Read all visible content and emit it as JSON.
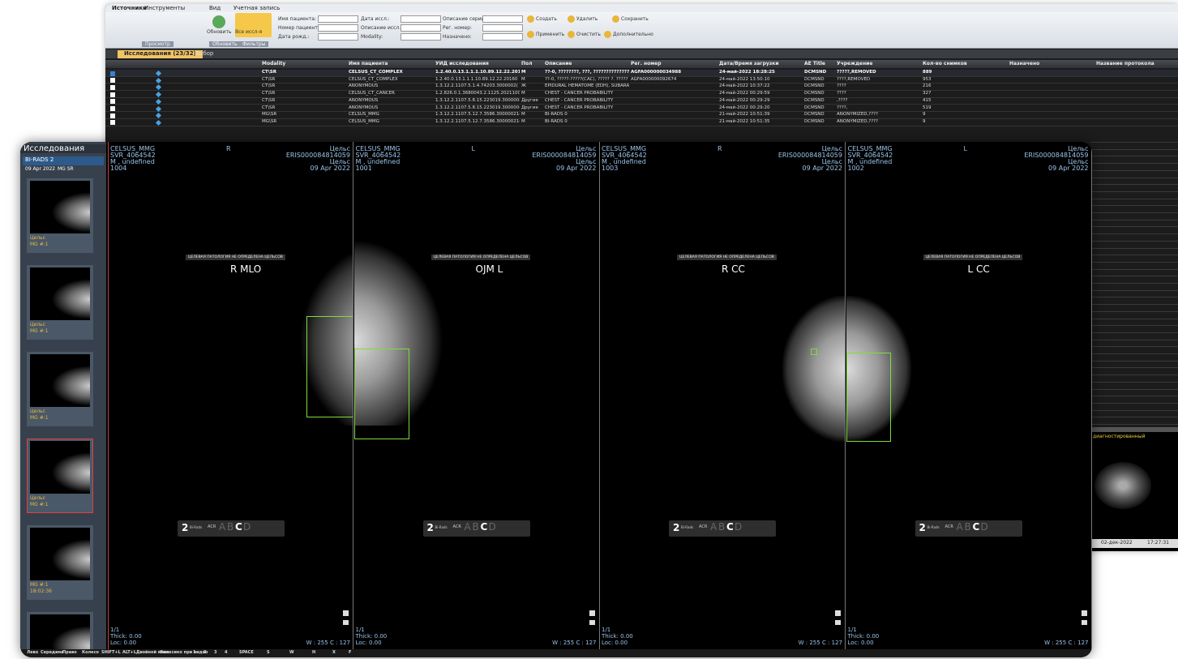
{
  "back_window": {
    "menu": [
      "Источники",
      "Инструменты",
      "Вид",
      "Учетная запись"
    ],
    "toolbar": {
      "buttons": [
        "Обновить",
        "Все иссл-я"
      ],
      "groups": [
        "Просмотр",
        "Обновить",
        "Фильтры"
      ],
      "filters": [
        "Имя пациента:",
        "Номер пациента:",
        "Дата рожд.:",
        "Дата иссл.:",
        "Описание иссл.:",
        "Modality:",
        "Описание серии:",
        "Рег. номер:",
        "Назначено:"
      ],
      "actions": [
        "Создать",
        "Удалить",
        "Сохранить",
        "Применить",
        "Очистить",
        "Дополнительно"
      ]
    },
    "tabs": [
      "Исследования (23/32)",
      "Выбор"
    ],
    "table": {
      "columns": [
        "Modality",
        "Имя пациента",
        "УИД исследования",
        "Пол",
        "Описание",
        "Рег. номер",
        "Дата/Время загрузки",
        "AE Title",
        "Учреждение",
        "Кол-во снимков",
        "Назначено",
        "Название протокола"
      ],
      "rows": [
        {
          "modality": "CT\\SR",
          "patient": "CELSUS_CT_COMPLEX",
          "uid": "1.2.40.0.13.1.1.1.10.89.12.22.201",
          "sex": "M",
          "description": "??-0, ????????, ???, ?????????????? ???:",
          "reg_number": "AGFA000000034988",
          "loaded": "24-май-2022 18:28:25",
          "ae_title": "DCMSND",
          "institution": "?????,REMOVED",
          "images": "889"
        },
        {
          "modality": "CT\\SR",
          "patient": "CELSUS_CT_COMPLEX",
          "uid": "1.2.40.0.13.1.1.1.10.89.12.22.20160",
          "sex": "M",
          "description": "??-0, ?????-?????(CAC), ????? ?. ????? (T:",
          "reg_number": "AGFA000000092674",
          "loaded": "24-май-2022 13:50:10",
          "ae_title": "DCMSND",
          "institution": "????,REMOVED",
          "images": "953"
        },
        {
          "modality": "CT\\SR",
          "patient": "ANONYMOUS",
          "uid": "1.3.12.2.1107.5.1.4.74203.3000002(",
          "sex": "Ж",
          "description": "EPIDURAL HEMATOME (EDH), SUBARA(",
          "loaded": "24-май-2022 10:37:22",
          "ae_title": "DCMSND",
          "institution": "????",
          "images": "216"
        },
        {
          "modality": "CT\\SR",
          "patient": "CELSUS_CT_CANCER",
          "uid": "1.2.826.0.1.3680043.2.1125.2021100",
          "sex": "M",
          "description": "CHEST - CANCER PROBABILITY",
          "loaded": "24-май-2022 00:29:59",
          "ae_title": "DCMSND",
          "institution": "????",
          "images": "327"
        },
        {
          "modality": "CT\\SR",
          "patient": "ANONYMOUS",
          "uid": "1.3.12.2.1107.5.8.15.223019.300000(",
          "sex": "Другие",
          "description": "CHEST - CANCER PROBABILITY",
          "loaded": "24-май-2022 00:29:29",
          "ae_title": "DCMSND",
          "institution": ",????",
          "images": "415"
        },
        {
          "modality": "CT\\SR",
          "patient": "ANONYMOUS",
          "uid": "1.3.12.2.1107.5.8.15.223019.300000(",
          "sex": "Другие",
          "description": "CHEST - CANCER PROBABILITY",
          "loaded": "24-май-2022 00:29:20",
          "ae_title": "DCMSND",
          "institution": "????,",
          "images": "519"
        },
        {
          "modality": "MG\\SR",
          "patient": "CELSUS_MMG",
          "uid": "1.3.12.2.1107.5.12.7.3586.30000021(",
          "sex": "M",
          "description": "BI-RADS 0",
          "loaded": "21-май-2022 10:51:39",
          "ae_title": "DCMSND",
          "institution": "ANONYMIZED,????",
          "images": "9"
        },
        {
          "modality": "MG\\SR",
          "patient": "CELSUS_MMG",
          "uid": "1.3.12.2.1107.5.12.7.3586.30000021(",
          "sex": "M",
          "description": "BI-RADS 0",
          "loaded": "21-май-2022 10:51:35",
          "ae_title": "DCMSND",
          "institution": "ANONYMIZED,????",
          "images": "9"
        }
      ]
    },
    "side_panel": {
      "status": "диагностированный",
      "date": "02-дек-2022",
      "time": "17:27:31"
    }
  },
  "viewer": {
    "sidebar": {
      "title": "Исследования",
      "dropdown": "BI-RADS 2",
      "study_date": "09 Apr 2022",
      "study_modality": "MG SR",
      "thumbnails": [
        {
          "lines": [
            "Цельс",
            "MG #:1"
          ]
        },
        {
          "lines": [
            "Цельс",
            "MG #:1"
          ]
        },
        {
          "lines": [
            "Цельс",
            "MG #:1"
          ]
        },
        {
          "lines": [
            "Цельс",
            "MG #:1"
          ],
          "selected": true
        },
        {
          "lines": [
            "MG #:1",
            "18:02:36"
          ]
        },
        {
          "lines": []
        }
      ]
    },
    "viewports": [
      {
        "patient": "CELSUS_MMG",
        "id": "SVR_4064542",
        "sex": "M , undefined",
        "number": "1004",
        "side": "R",
        "right": [
          "Цельс",
          "ERIS000084814059",
          "Цельс",
          "09 Apr 2022"
        ],
        "pathology": "ЦЕЛЕВАЯ ПАТОЛОГИЯ НЕ ОПРЕДЕЛЕНА ЦЕЛЬСОВ",
        "view": "R MLO",
        "birads": "2",
        "birads_label": "Bi-Rads",
        "acr": "ACR",
        "density": [
          "A",
          "B",
          "C",
          "D"
        ],
        "frame": "1/1",
        "thick": "Thick: 0.00",
        "loc": "Loc: 0.00",
        "window": "W : 255 C : 127"
      },
      {
        "patient": "CELSUS_MMG",
        "id": "SVR_4064542",
        "sex": "M , undefined",
        "number": "1001",
        "side": "L",
        "right": [
          "Цельс",
          "ERIS000084814059",
          "Цельс",
          "09 Apr 2022"
        ],
        "pathology": "ЦЕЛЕВАЯ ПАТОЛОГИЯ НЕ ОПРЕДЕЛЕНА ЦЕЛЬСОВ",
        "view": "OJM L",
        "birads": "2",
        "birads_label": "Bi-Rads",
        "acr": "ACR",
        "density": [
          "A",
          "B",
          "C",
          "D"
        ],
        "frame": "1/1",
        "thick": "Thick: 0.00",
        "loc": "Loc: 0.00",
        "window": "W : 255 C : 127"
      },
      {
        "patient": "CELSUS_MMG",
        "id": "SVR_4064542",
        "sex": "M , undefined",
        "number": "1003",
        "side": "R",
        "right": [
          "Цельс",
          "ERIS000084814059",
          "Цельс",
          "09 Apr 2022"
        ],
        "pathology": "ЦЕЛЕВАЯ ПАТОЛОГИЯ НЕ ОПРЕДЕЛЕНА ЦЕЛЬСОВ",
        "view": "R CC",
        "birads": "2",
        "birads_label": "Bi-Rads",
        "acr": "ACR",
        "density": [
          "A",
          "B",
          "C",
          "D"
        ],
        "frame": "1/1",
        "thick": "Thick: 0.00",
        "loc": "Loc: 0.00",
        "window": "W : 255 C : 127"
      },
      {
        "patient": "CELSUS_MMG",
        "id": "SVR_4064542",
        "sex": "M , undefined",
        "number": "1002",
        "side": "L",
        "right": [
          "Цельс",
          "ERIS000084814059",
          "Цельс",
          "09 Apr 2022"
        ],
        "pathology": "ЦЕЛЕВАЯ ПАТОЛОГИЯ НЕ ОПРЕДЕЛЕНА ЦЕЛЬСОВ",
        "view": "L CC",
        "birads": "2",
        "birads_label": "Bi-Rads",
        "acr": "ACR",
        "density": [
          "A",
          "B",
          "C",
          "D"
        ],
        "frame": "1/1",
        "thick": "Thick: 0.00",
        "loc": "Loc: 0.00",
        "window": "W : 255 C : 127"
      }
    ],
    "status_bar": [
      "Лево",
      "Середина",
      "Право",
      "Колесо",
      "SHIFT+L",
      "ALT+L",
      "Двойной клик",
      "Колесико при видео",
      "1",
      "2",
      "3",
      "4",
      "SPACE",
      "S",
      "W",
      "H",
      "X",
      "F"
    ]
  }
}
